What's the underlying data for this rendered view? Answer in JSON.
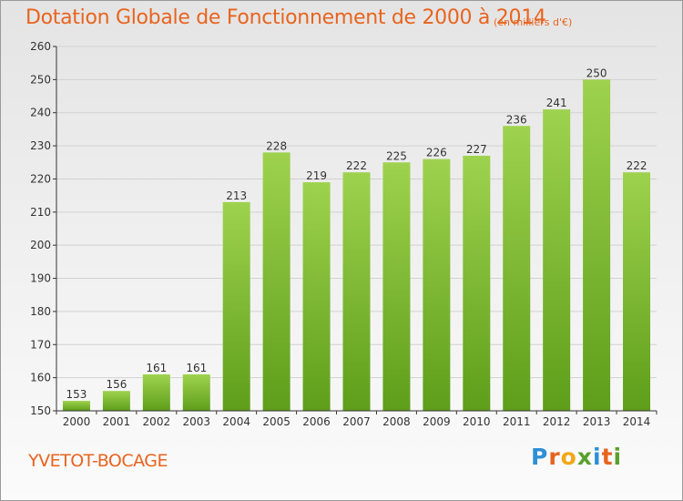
{
  "title": "Dotation Globale de Fonctionnement de 2000 à 2014",
  "unit_note": "(en milliers d'€)",
  "commune": "YVETOT-BOCAGE",
  "logo": {
    "text": "Proxiti",
    "letters": [
      {
        "ch": "P",
        "color": "#2e8fd6"
      },
      {
        "ch": "r",
        "color": "#e8641e"
      },
      {
        "ch": "o",
        "color": "#f0a818"
      },
      {
        "ch": "x",
        "color": "#5aa02c"
      },
      {
        "ch": "i",
        "color": "#2e8fd6"
      },
      {
        "ch": "t",
        "color": "#e8641e"
      },
      {
        "ch": "i",
        "color": "#5aa02c"
      }
    ]
  },
  "colors": {
    "accent": "#e8641e",
    "bar_top": "#9ed24e",
    "bar_bottom": "#5e9e1a",
    "axis": "#333333",
    "grid": "#d2d2d2"
  },
  "chart_data": {
    "type": "bar",
    "categories": [
      "2000",
      "2001",
      "2002",
      "2003",
      "2004",
      "2005",
      "2006",
      "2007",
      "2008",
      "2009",
      "2010",
      "2011",
      "2012",
      "2013",
      "2014"
    ],
    "values": [
      153,
      156,
      161,
      161,
      213,
      228,
      219,
      222,
      225,
      226,
      227,
      236,
      241,
      250,
      222
    ],
    "data_labels": [
      "153",
      "156",
      "161",
      "161",
      "213",
      "228",
      "219",
      "222",
      "225",
      "226",
      "227",
      "236",
      "241",
      "250",
      "222"
    ],
    "yticks": [
      "150",
      "160",
      "170",
      "180",
      "190",
      "200",
      "210",
      "220",
      "230",
      "240",
      "250",
      "260"
    ],
    "ylim": [
      150,
      260
    ],
    "grid": true,
    "legend": "none"
  }
}
